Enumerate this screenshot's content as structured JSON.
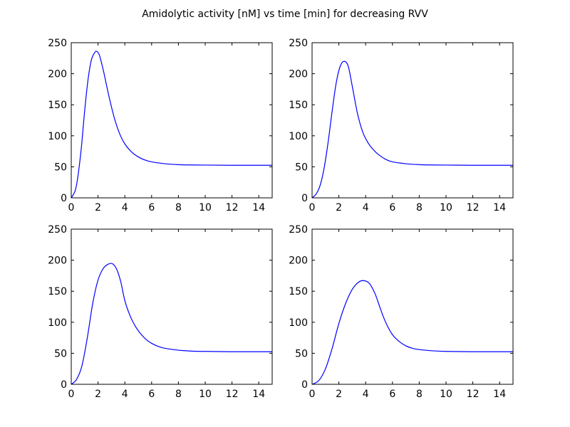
{
  "figure": {
    "title": "Amidolytic activity [nM] vs  time [min] for decreasing RVV",
    "line_color": "#0000ff"
  },
  "chart_data": [
    {
      "type": "line",
      "title": "",
      "xlabel": "",
      "ylabel": "",
      "xlim": [
        0,
        15
      ],
      "ylim": [
        0,
        250
      ],
      "xticks": [
        0,
        2,
        4,
        6,
        8,
        10,
        12,
        14
      ],
      "yticks": [
        0,
        50,
        100,
        150,
        200,
        250
      ],
      "grid": false,
      "series": [
        {
          "x": [
            0,
            0.3,
            0.5,
            0.75,
            1.0,
            1.25,
            1.5,
            1.75,
            1.9,
            2.1,
            2.4,
            2.8,
            3.2,
            3.6,
            4.0,
            4.5,
            5.0,
            5.5,
            6.0,
            7.0,
            8.0,
            9.0,
            10.0,
            12.0,
            15.0
          ],
          "y": [
            0,
            12,
            35,
            80,
            140,
            190,
            222,
            234,
            236,
            230,
            205,
            165,
            130,
            104,
            87,
            74,
            66,
            61,
            58,
            55,
            53.5,
            53,
            52.8,
            52.5,
            52.5
          ]
        }
      ]
    },
    {
      "type": "line",
      "title": "",
      "xlabel": "",
      "ylabel": "",
      "xlim": [
        0,
        15
      ],
      "ylim": [
        0,
        250
      ],
      "xticks": [
        0,
        2,
        4,
        6,
        8,
        10,
        12,
        14
      ],
      "yticks": [
        0,
        50,
        100,
        150,
        200,
        250
      ],
      "grid": false,
      "series": [
        {
          "x": [
            0,
            0.3,
            0.6,
            0.9,
            1.2,
            1.5,
            1.8,
            2.1,
            2.4,
            2.7,
            3.0,
            3.4,
            3.8,
            4.2,
            4.6,
            5.0,
            5.5,
            6.0,
            7.0,
            8.0,
            9.0,
            10.0,
            12.0,
            15.0
          ],
          "y": [
            0,
            6,
            20,
            48,
            90,
            140,
            185,
            212,
            220,
            212,
            180,
            135,
            105,
            88,
            77,
            69,
            62,
            58,
            55,
            53.5,
            53,
            52.8,
            52.5,
            52.5
          ]
        }
      ]
    },
    {
      "type": "line",
      "title": "",
      "xlabel": "",
      "ylabel": "",
      "xlim": [
        0,
        15
      ],
      "ylim": [
        0,
        250
      ],
      "xticks": [
        0,
        2,
        4,
        6,
        8,
        10,
        12,
        14
      ],
      "yticks": [
        0,
        50,
        100,
        150,
        200,
        250
      ],
      "grid": false,
      "series": [
        {
          "x": [
            0,
            0.4,
            0.8,
            1.2,
            1.6,
            2.0,
            2.4,
            2.8,
            3.1,
            3.4,
            3.7,
            4.0,
            4.4,
            4.8,
            5.2,
            5.6,
            6.0,
            6.5,
            7.0,
            8.0,
            9.0,
            10.0,
            12.0,
            15.0
          ],
          "y": [
            0,
            8,
            30,
            75,
            130,
            168,
            187,
            194,
            194,
            185,
            165,
            135,
            110,
            93,
            81,
            72,
            66,
            61,
            58,
            55,
            53.5,
            53,
            52.5,
            52.5
          ]
        }
      ]
    },
    {
      "type": "line",
      "title": "",
      "xlabel": "",
      "ylabel": "",
      "xlim": [
        0,
        15
      ],
      "ylim": [
        0,
        250
      ],
      "xticks": [
        0,
        2,
        4,
        6,
        8,
        10,
        12,
        14
      ],
      "yticks": [
        0,
        50,
        100,
        150,
        200,
        250
      ],
      "grid": false,
      "series": [
        {
          "x": [
            0,
            0.5,
            1.0,
            1.5,
            2.0,
            2.5,
            3.0,
            3.5,
            3.9,
            4.3,
            4.7,
            5.0,
            5.3,
            5.6,
            6.0,
            6.5,
            7.0,
            7.5,
            8.0,
            9.0,
            10.0,
            12.0,
            15.0
          ],
          "y": [
            0,
            6,
            25,
            58,
            98,
            130,
            153,
            165,
            167,
            162,
            146,
            128,
            110,
            95,
            80,
            69,
            62,
            58,
            56,
            54,
            53,
            52.5,
            52.5
          ]
        }
      ]
    }
  ]
}
